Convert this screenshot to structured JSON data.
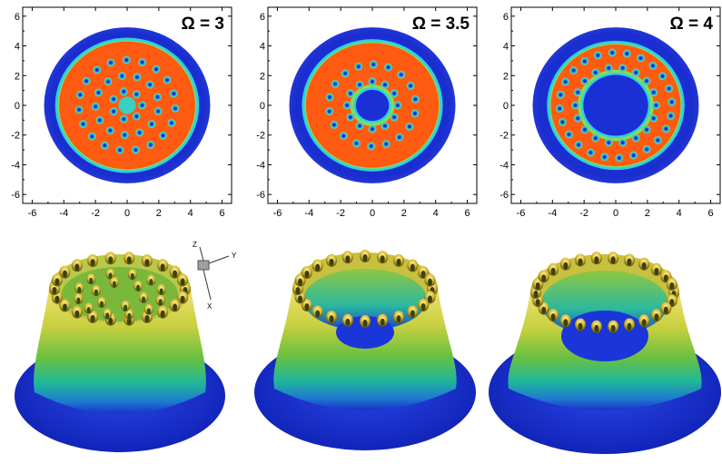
{
  "figure": {
    "panels": [
      {
        "title": "Ω = 3",
        "ring_count": 3,
        "vortex_rings": [
          7,
          13,
          19
        ],
        "hole": false
      },
      {
        "title": "Ω = 3.5",
        "ring_count": 2,
        "vortex_rings": [
          12,
          18
        ],
        "hole": true
      },
      {
        "title": "Ω = 4",
        "ring_count": 2,
        "vortex_rings": [
          18,
          24
        ],
        "hole": true
      }
    ],
    "x_ticks": [
      "-6",
      "-4",
      "-2",
      "0",
      "2",
      "4",
      "6"
    ],
    "y_ticks": [
      "6",
      "4",
      "2",
      "0",
      "-2",
      "-4",
      "-6"
    ],
    "axis_triad": {
      "z": "Z",
      "y": "Y",
      "x": "X"
    },
    "colors": {
      "background": "#ffffff",
      "outer_blue": "#1b2fd6",
      "edge_cyan": "#2fd0e0",
      "edge_green": "#7fe05a",
      "ring_orange": "#ff5a12",
      "vortex_core": "#28a8d8"
    }
  }
}
